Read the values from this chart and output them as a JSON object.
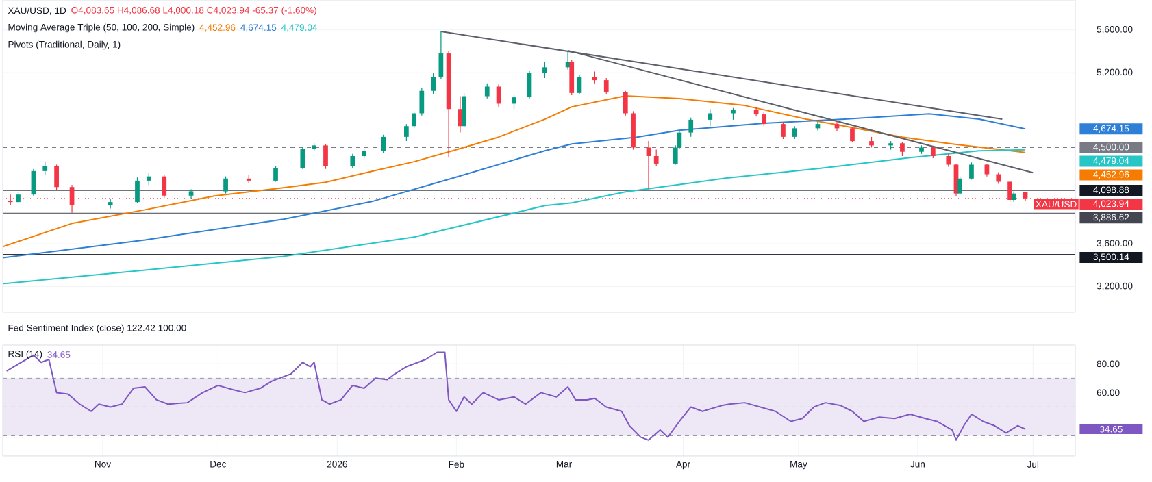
{
  "chart_data": [
    {
      "type": "candlestick",
      "title": "XAU/USD, 1D",
      "annotations": [
        "O4,083.65 H4,086.68 L4,000.18 C4,023.94 -65.37 (-1.60%)",
        "Moving Average Triple (50, 100, 200, Simple)",
        "Pivots (Traditional, Daily, 1)",
        "4,452.96",
        "4,674.15",
        "4,479.04",
        {
          "text": "XAU/USD",
          "x": "2026-06-29",
          "y": 4023.94
        }
      ],
      "x": [
        "2025-10-08",
        "2025-10-10",
        "2025-10-14",
        "2025-10-17",
        "2025-10-20",
        "2025-10-24",
        "2025-11-03",
        "2025-11-10",
        "2025-11-13",
        "2025-11-17",
        "2025-11-24",
        "2025-12-03",
        "2025-12-09",
        "2025-12-16",
        "2025-12-23",
        "2025-12-26",
        "2025-12-29",
        "2026-01-05",
        "2026-01-08",
        "2026-01-13",
        "2026-01-19",
        "2026-01-21",
        "2026-01-23",
        "2026-01-26",
        "2026-01-28",
        "2026-01-30",
        "2026-02-02",
        "2026-02-03",
        "2026-02-09",
        "2026-02-12",
        "2026-02-16",
        "2026-02-20",
        "2026-02-24",
        "2026-03-02",
        "2026-03-03",
        "2026-03-05",
        "2026-03-09",
        "2026-03-12",
        "2026-03-17",
        "2026-03-19",
        "2026-03-23",
        "2026-03-25",
        "2026-03-30",
        "2026-03-31",
        "2026-04-03",
        "2026-04-08",
        "2026-04-14",
        "2026-04-20",
        "2026-04-22",
        "2026-04-27",
        "2026-04-30",
        "2026-05-06",
        "2026-05-11",
        "2026-05-15",
        "2026-05-20",
        "2026-05-25",
        "2026-05-28",
        "2026-06-02",
        "2026-06-05",
        "2026-06-09",
        "2026-06-11",
        "2026-06-12",
        "2026-06-15",
        "2026-06-19",
        "2026-06-22",
        "2026-06-25",
        "2026-06-26",
        "2026-06-29"
      ],
      "ohlc": [
        [
          4000,
          4060,
          3960,
          3990
        ],
        [
          3990,
          4080,
          3980,
          4060
        ],
        [
          4060,
          4300,
          4050,
          4280
        ],
        [
          4280,
          4370,
          4240,
          4330
        ],
        [
          4330,
          4340,
          4100,
          4130
        ],
        [
          4130,
          4150,
          3890,
          3960
        ],
        [
          3960,
          4020,
          3930,
          3990
        ],
        [
          3990,
          4220,
          3980,
          4190
        ],
        [
          4190,
          4260,
          4150,
          4230
        ],
        [
          4230,
          4240,
          4030,
          4050
        ],
        [
          4050,
          4110,
          4020,
          4090
        ],
        [
          4090,
          4230,
          4070,
          4210
        ],
        [
          4210,
          4240,
          4170,
          4190
        ],
        [
          4190,
          4330,
          4180,
          4310
        ],
        [
          4310,
          4510,
          4300,
          4490
        ],
        [
          4490,
          4540,
          4470,
          4520
        ],
        [
          4520,
          4530,
          4300,
          4330
        ],
        [
          4330,
          4440,
          4310,
          4420
        ],
        [
          4420,
          4480,
          4400,
          4470
        ],
        [
          4470,
          4620,
          4450,
          4600
        ],
        [
          4600,
          4720,
          4560,
          4700
        ],
        [
          4700,
          4840,
          4680,
          4820
        ],
        [
          4820,
          5060,
          4800,
          5030
        ],
        [
          5030,
          5200,
          5000,
          5160
        ],
        [
          5160,
          5586,
          5140,
          5380
        ],
        [
          5380,
          5400,
          4410,
          4860
        ],
        [
          4860,
          4980,
          4640,
          4700
        ],
        [
          4700,
          5010,
          4690,
          4980
        ],
        [
          4980,
          5100,
          4960,
          5070
        ],
        [
          5070,
          5090,
          4880,
          4910
        ],
        [
          4910,
          4990,
          4860,
          4970
        ],
        [
          4970,
          5220,
          4960,
          5200
        ],
        [
          5200,
          5300,
          5150,
          5250
        ],
        [
          5250,
          5407,
          5230,
          5300
        ],
        [
          5300,
          5320,
          4990,
          5010
        ],
        [
          5010,
          5180,
          5000,
          5160
        ],
        [
          5160,
          5210,
          5100,
          5130
        ],
        [
          5130,
          5150,
          5000,
          5020
        ],
        [
          5020,
          5030,
          4800,
          4820
        ],
        [
          4820,
          4840,
          4480,
          4500
        ],
        [
          4500,
          4560,
          4111,
          4420
        ],
        [
          4420,
          4480,
          4330,
          4350
        ],
        [
          4350,
          4520,
          4340,
          4500
        ],
        [
          4500,
          4660,
          4490,
          4640
        ],
        [
          4640,
          4780,
          4600,
          4760
        ],
        [
          4760,
          4860,
          4700,
          4820
        ],
        [
          4820,
          4870,
          4760,
          4850
        ],
        [
          4850,
          4880,
          4790,
          4810
        ],
        [
          4810,
          4830,
          4700,
          4720
        ],
        [
          4720,
          4740,
          4580,
          4600
        ],
        [
          4600,
          4700,
          4580,
          4680
        ],
        [
          4680,
          4740,
          4660,
          4720
        ],
        [
          4720,
          4750,
          4650,
          4680
        ],
        [
          4680,
          4690,
          4550,
          4560
        ],
        [
          4560,
          4600,
          4500,
          4520
        ],
        [
          4520,
          4560,
          4480,
          4540
        ],
        [
          4540,
          4550,
          4420,
          4460
        ],
        [
          4460,
          4520,
          4440,
          4500
        ],
        [
          4500,
          4510,
          4400,
          4420
        ],
        [
          4420,
          4440,
          4320,
          4340
        ],
        [
          4340,
          4350,
          4047,
          4070
        ],
        [
          4070,
          4230,
          4060,
          4210
        ],
        [
          4210,
          4360,
          4200,
          4340
        ],
        [
          4340,
          4350,
          4230,
          4250
        ],
        [
          4250,
          4270,
          4160,
          4180
        ],
        [
          4180,
          4190,
          3990,
          4010
        ],
        [
          4010,
          4090,
          3990,
          4070
        ],
        [
          4083.65,
          4086.68,
          4000.18,
          4023.94
        ]
      ],
      "colors": [
        "#f23645",
        "#089981",
        "#089981",
        "#089981",
        "#f23645",
        "#f23645",
        "#089981",
        "#089981",
        "#089981",
        "#f23645",
        "#089981",
        "#089981",
        "#f23645",
        "#089981",
        "#089981",
        "#089981",
        "#f23645",
        "#089981",
        "#089981",
        "#089981",
        "#089981",
        "#089981",
        "#089981",
        "#089981",
        "#089981",
        "#f23645",
        "#f23645",
        "#089981",
        "#089981",
        "#f23645",
        "#089981",
        "#089981",
        "#089981",
        "#089981",
        "#f23645",
        "#089981",
        "#f23645",
        "#f23645",
        "#f23645",
        "#f23645",
        "#f23645",
        "#f23645",
        "#089981",
        "#089981",
        "#089981",
        "#089981",
        "#089981",
        "#f23645",
        "#f23645",
        "#f23645",
        "#089981",
        "#089981",
        "#f23645",
        "#f23645",
        "#f23645",
        "#089981",
        "#f23645",
        "#089981",
        "#f23645",
        "#f23645",
        "#f23645",
        "#089981",
        "#089981",
        "#f23645",
        "#f23645",
        "#f23645",
        "#089981",
        "#f23645"
      ],
      "series": [
        {
          "type": "line",
          "color": "#f57c00",
          "x": [
            "2025-10-06",
            "2025-10-24",
            "2025-11-12",
            "2025-11-30",
            "2025-12-18",
            "2025-12-29",
            "2026-01-10",
            "2026-01-21",
            "2026-01-31",
            "2026-02-12",
            "2026-02-24",
            "2026-03-03",
            "2026-03-17",
            "2026-03-31",
            "2026-04-17",
            "2026-05-03",
            "2026-05-13",
            "2026-05-28",
            "2026-06-10",
            "2026-06-29"
          ],
          "values": [
            3572,
            3790,
            3918,
            4047,
            4124,
            4175,
            4278,
            4368,
            4470,
            4598,
            4765,
            4880,
            4983,
            4958,
            4893,
            4765,
            4700,
            4598,
            4534,
            4452.96
          ]
        },
        {
          "type": "line",
          "color": "#2e7fd6",
          "x": [
            "2025-10-06",
            "2025-11-12",
            "2025-12-18",
            "2026-01-10",
            "2026-01-31",
            "2026-02-24",
            "2026-03-03",
            "2026-03-20",
            "2026-03-31",
            "2026-04-22",
            "2026-05-13",
            "2026-06-04",
            "2026-06-17",
            "2026-06-29"
          ],
          "values": [
            3469,
            3636,
            3829,
            3995,
            4213,
            4470,
            4534,
            4598,
            4662,
            4727,
            4765,
            4816,
            4765,
            4674.15
          ]
        },
        {
          "type": "line",
          "color": "#26c6c6",
          "x": [
            "2025-10-06",
            "2025-11-12",
            "2025-12-18",
            "2026-01-21",
            "2026-02-24",
            "2026-03-03",
            "2026-03-17",
            "2026-04-12",
            "2026-05-06",
            "2026-05-30",
            "2026-06-17",
            "2026-06-29"
          ],
          "values": [
            3226,
            3354,
            3482,
            3662,
            3957,
            3983,
            4085,
            4213,
            4303,
            4406,
            4470,
            4479.04
          ]
        },
        {
          "type": "line",
          "color": "#5d606b",
          "x": [
            "2026-01-28",
            "2026-06-23"
          ],
          "values": [
            5586,
            4765
          ]
        },
        {
          "type": "line",
          "color": "#5d606b",
          "x": [
            "2026-03-02",
            "2026-07-01"
          ],
          "values": [
            5407,
            4265
          ]
        }
      ],
      "xlim": [
        "2025-10-06",
        "2026-07-12"
      ],
      "ylim": [
        2960,
        5880
      ],
      "yticks": [
        {
          "value": 3200,
          "label": "3,200.00"
        },
        {
          "value": 3600,
          "label": "3,600.00"
        },
        {
          "value": 5200,
          "label": "5,200.00"
        },
        {
          "value": 5600,
          "label": "5,600.00"
        }
      ],
      "ref_lines": [
        {
          "axis": "y",
          "value": 4500,
          "label": "4,500.00",
          "color": "#787b86",
          "line_style": "dashed"
        },
        {
          "axis": "y",
          "value": 4098.88,
          "label": "4,098.88",
          "color": "#131722",
          "line_style": "solid"
        },
        {
          "axis": "y",
          "value": 4023.94,
          "label": "4,023.94",
          "color": "#f23645",
          "line_style": "dotted"
        },
        {
          "axis": "y",
          "value": 3886.62,
          "label": "3,886.62",
          "color": "#434651",
          "line_style": "solid"
        },
        {
          "axis": "y",
          "value": 3500.14,
          "label": "3,500.14",
          "color": "#131722",
          "line_style": "solid"
        }
      ],
      "grid": "y",
      "tick_labels": "y"
    },
    {
      "type": "line",
      "title": "RSI (14)",
      "annotations": [
        "Fed Sentiment Index (close) 122.42 100.00",
        "34.65"
      ],
      "series": [
        {
          "color": "#7e57c2",
          "x": [
            "2025-10-07",
            "2025-10-14",
            "2025-10-16",
            "2025-10-18",
            "2025-10-20",
            "2025-10-23",
            "2025-10-26",
            "2025-10-29",
            "2025-10-31",
            "2025-11-03",
            "2025-11-06",
            "2025-11-09",
            "2025-11-12",
            "2025-11-15",
            "2025-11-18",
            "2025-11-23",
            "2025-11-27",
            "2025-12-01",
            "2025-12-05",
            "2025-12-08",
            "2025-12-12",
            "2025-12-15",
            "2025-12-17",
            "2025-12-20",
            "2025-12-23",
            "2025-12-25",
            "2025-12-26",
            "2025-12-28",
            "2025-12-30",
            "2026-01-02",
            "2026-01-05",
            "2026-01-08",
            "2026-01-11",
            "2026-01-14",
            "2026-01-16",
            "2026-01-19",
            "2026-01-24",
            "2026-01-27",
            "2026-01-29",
            "2026-01-30",
            "2026-02-01",
            "2026-02-03",
            "2026-02-05",
            "2026-02-08",
            "2026-02-12",
            "2026-02-16",
            "2026-02-19",
            "2026-02-23",
            "2026-02-27",
            "2026-03-02",
            "2026-03-04",
            "2026-03-07",
            "2026-03-09",
            "2026-03-12",
            "2026-03-16",
            "2026-03-18",
            "2026-03-21",
            "2026-03-23",
            "2026-03-26",
            "2026-03-28",
            "2026-03-31",
            "2026-04-03",
            "2026-04-06",
            "2026-04-11",
            "2026-04-13",
            "2026-04-17",
            "2026-04-21",
            "2026-04-25",
            "2026-04-29",
            "2026-05-02",
            "2026-05-05",
            "2026-05-08",
            "2026-05-12",
            "2026-05-15",
            "2026-05-18",
            "2026-05-22",
            "2026-05-26",
            "2026-05-30",
            "2026-06-03",
            "2026-06-06",
            "2026-06-10",
            "2026-06-11",
            "2026-06-13",
            "2026-06-15",
            "2026-06-18",
            "2026-06-21",
            "2026-06-24",
            "2026-06-27",
            "2026-06-29"
          ],
          "values": [
            75,
            86,
            81,
            83,
            60,
            59,
            52,
            47,
            52,
            50,
            52,
            63,
            64,
            55,
            52,
            53,
            60,
            65,
            62,
            60,
            63,
            68,
            70,
            73,
            81,
            78,
            81,
            55,
            52,
            55,
            65,
            63,
            70,
            69,
            73,
            78,
            83,
            88,
            88,
            55,
            47,
            57,
            52,
            60,
            55,
            57,
            52,
            60,
            57,
            64,
            55,
            55,
            56,
            50,
            47,
            37,
            29,
            27,
            34,
            29,
            40,
            50,
            47,
            51,
            52,
            53,
            50,
            47,
            40,
            42,
            50,
            53,
            51,
            47,
            40,
            43,
            42,
            45,
            42,
            40,
            34,
            27,
            37,
            45,
            40,
            37,
            32,
            37,
            34.65
          ]
        }
      ],
      "xlim": [
        "2025-10-06",
        "2026-07-12"
      ],
      "xticks": [
        {
          "value": "2025-11-01",
          "label": "Nov"
        },
        {
          "value": "2025-12-01",
          "label": "Dec"
        },
        {
          "value": "2026-01-01",
          "label": "2026"
        },
        {
          "value": "2026-02-01",
          "label": "Feb"
        },
        {
          "value": "2026-03-01",
          "label": "Mar"
        },
        {
          "value": "2026-04-01",
          "label": "Apr"
        },
        {
          "value": "2026-05-01",
          "label": "May"
        },
        {
          "value": "2026-06-01",
          "label": "Jun"
        },
        {
          "value": "2026-07-01",
          "label": "Jul"
        }
      ],
      "ylim": [
        16,
        93
      ],
      "yticks": [
        {
          "value": 60,
          "label": "60.00"
        },
        {
          "value": 80,
          "label": "80.00"
        }
      ],
      "bands": [
        {
          "axis": "y",
          "from": 30,
          "to": 70,
          "color": "#ede7f6"
        }
      ],
      "ref_lines": [
        {
          "axis": "y",
          "value": 70,
          "color": "#9598a1",
          "line_style": "dashed"
        },
        {
          "axis": "y",
          "value": 50,
          "color": "#9598a1",
          "line_style": "dashed"
        },
        {
          "axis": "y",
          "value": 30,
          "color": "#9598a1",
          "line_style": "dashed"
        }
      ],
      "grid": true
    }
  ]
}
